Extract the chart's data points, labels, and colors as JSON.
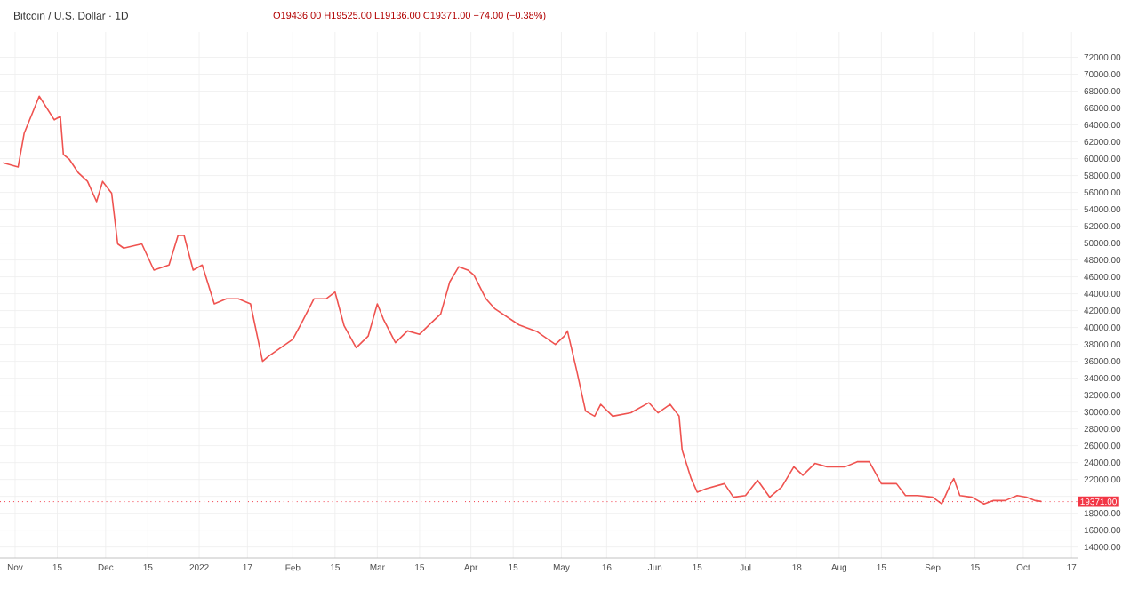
{
  "chart_data": {
    "type": "line",
    "title": "Bitcoin / U.S. Dollar · 1D",
    "subtitle": "O19436.00 H19525.00 L19136.00 C19371.00 −74.00 (−0.38%)",
    "x": [
      "2021-10-28",
      "2021-11-02",
      "2021-11-04",
      "2021-11-09",
      "2021-11-14",
      "2021-11-16",
      "2021-11-17",
      "2021-11-19",
      "2021-11-22",
      "2021-11-25",
      "2021-11-28",
      "2021-11-30",
      "2021-12-03",
      "2021-12-05",
      "2021-12-07",
      "2021-12-13",
      "2021-12-17",
      "2021-12-22",
      "2021-12-25",
      "2021-12-27",
      "2021-12-30",
      "2022-01-02",
      "2022-01-06",
      "2022-01-10",
      "2022-01-14",
      "2022-01-18",
      "2022-01-22",
      "2022-01-24",
      "2022-02-01",
      "2022-02-04",
      "2022-02-08",
      "2022-02-12",
      "2022-02-15",
      "2022-02-18",
      "2022-02-22",
      "2022-02-26",
      "2022-03-01",
      "2022-03-03",
      "2022-03-07",
      "2022-03-11",
      "2022-03-15",
      "2022-03-19",
      "2022-03-22",
      "2022-03-25",
      "2022-03-28",
      "2022-03-31",
      "2022-04-02",
      "2022-04-06",
      "2022-04-09",
      "2022-04-17",
      "2022-04-23",
      "2022-04-29",
      "2022-05-02",
      "2022-05-03",
      "2022-05-06",
      "2022-05-09",
      "2022-05-12",
      "2022-05-14",
      "2022-05-18",
      "2022-05-24",
      "2022-05-30",
      "2022-06-02",
      "2022-06-06",
      "2022-06-09",
      "2022-06-10",
      "2022-06-13",
      "2022-06-15",
      "2022-06-18",
      "2022-06-24",
      "2022-06-27",
      "2022-07-01",
      "2022-07-05",
      "2022-07-09",
      "2022-07-13",
      "2022-07-17",
      "2022-07-20",
      "2022-07-24",
      "2022-07-28",
      "2022-08-03",
      "2022-08-07",
      "2022-08-11",
      "2022-08-15",
      "2022-08-20",
      "2022-08-23",
      "2022-08-27",
      "2022-09-01",
      "2022-09-04",
      "2022-09-07",
      "2022-09-08",
      "2022-09-10",
      "2022-09-14",
      "2022-09-18",
      "2022-09-21",
      "2022-09-25",
      "2022-09-29",
      "2022-10-02",
      "2022-10-05",
      "2022-10-07"
    ],
    "series": [
      {
        "color": "#ef5350",
        "values": [
          59500,
          59000,
          63000,
          67400,
          64600,
          65000,
          60500,
          59900,
          58300,
          57300,
          54900,
          57300,
          55900,
          49900,
          49400,
          49900,
          46800,
          47400,
          50900,
          50900,
          46800,
          47400,
          42800,
          43400,
          43400,
          42800,
          36000,
          36600,
          38600,
          40600,
          43400,
          43400,
          44200,
          40200,
          37600,
          39000,
          42800,
          41000,
          38200,
          39600,
          39200,
          40600,
          41600,
          45400,
          47200,
          46800,
          46200,
          43400,
          42200,
          40300,
          39500,
          38000,
          39000,
          39600,
          35000,
          30100,
          29500,
          30900,
          29500,
          29900,
          31100,
          29900,
          30900,
          29500,
          25500,
          22100,
          20500,
          20900,
          21500,
          19900,
          20100,
          21900,
          19900,
          21100,
          23500,
          22500,
          23900,
          23500,
          23500,
          24100,
          24100,
          21500,
          21500,
          20100,
          20100,
          19900,
          19100,
          21500,
          22100,
          20100,
          19900,
          19100,
          19500,
          19500,
          20100,
          19900,
          19500,
          19400
        ]
      }
    ],
    "xlim": [
      "2021-10-27",
      "2022-10-19"
    ],
    "xticks": [
      {
        "value": "2021-11-01",
        "label": "Nov"
      },
      {
        "value": "2021-11-15",
        "label": "15"
      },
      {
        "value": "2021-12-01",
        "label": "Dec"
      },
      {
        "value": "2021-12-15",
        "label": "15"
      },
      {
        "value": "2022-01-01",
        "label": "2022"
      },
      {
        "value": "2022-01-17",
        "label": "17"
      },
      {
        "value": "2022-02-01",
        "label": "Feb"
      },
      {
        "value": "2022-02-15",
        "label": "15"
      },
      {
        "value": "2022-03-01",
        "label": "Mar"
      },
      {
        "value": "2022-03-15",
        "label": "15"
      },
      {
        "value": "2022-04-01",
        "label": "Apr"
      },
      {
        "value": "2022-04-15",
        "label": "15"
      },
      {
        "value": "2022-05-01",
        "label": "May"
      },
      {
        "value": "2022-05-16",
        "label": "16"
      },
      {
        "value": "2022-06-01",
        "label": "Jun"
      },
      {
        "value": "2022-06-15",
        "label": "15"
      },
      {
        "value": "2022-07-01",
        "label": "Jul"
      },
      {
        "value": "2022-07-18",
        "label": "18"
      },
      {
        "value": "2022-08-01",
        "label": "Aug"
      },
      {
        "value": "2022-08-15",
        "label": "15"
      },
      {
        "value": "2022-09-01",
        "label": "Sep"
      },
      {
        "value": "2022-09-15",
        "label": "15"
      },
      {
        "value": "2022-10-01",
        "label": "Oct"
      },
      {
        "value": "2022-10-17",
        "label": "17"
      }
    ],
    "ylim": [
      12700,
      75000
    ],
    "yticks": [
      {
        "value": 14000,
        "label": "14000.00"
      },
      {
        "value": 16000,
        "label": "16000.00"
      },
      {
        "value": 18000,
        "label": "18000.00"
      },
      {
        "value": 20000,
        "label": null
      },
      {
        "value": 22000,
        "label": "22000.00"
      },
      {
        "value": 24000,
        "label": "24000.00"
      },
      {
        "value": 26000,
        "label": "26000.00"
      },
      {
        "value": 28000,
        "label": "28000.00"
      },
      {
        "value": 30000,
        "label": "30000.00"
      },
      {
        "value": 32000,
        "label": "32000.00"
      },
      {
        "value": 34000,
        "label": "34000.00"
      },
      {
        "value": 36000,
        "label": "36000.00"
      },
      {
        "value": 38000,
        "label": "38000.00"
      },
      {
        "value": 40000,
        "label": "40000.00"
      },
      {
        "value": 42000,
        "label": "42000.00"
      },
      {
        "value": 44000,
        "label": "44000.00"
      },
      {
        "value": 46000,
        "label": "46000.00"
      },
      {
        "value": 48000,
        "label": "48000.00"
      },
      {
        "value": 50000,
        "label": "50000.00"
      },
      {
        "value": 52000,
        "label": "52000.00"
      },
      {
        "value": 54000,
        "label": "54000.00"
      },
      {
        "value": 56000,
        "label": "56000.00"
      },
      {
        "value": 58000,
        "label": "58000.00"
      },
      {
        "value": 60000,
        "label": "60000.00"
      },
      {
        "value": 62000,
        "label": "62000.00"
      },
      {
        "value": 64000,
        "label": "64000.00"
      },
      {
        "value": 66000,
        "label": "66000.00"
      },
      {
        "value": 68000,
        "label": "68000.00"
      },
      {
        "value": 70000,
        "label": "70000.00"
      },
      {
        "value": 72000,
        "label": "72000.00"
      }
    ],
    "grid": true,
    "ref_lines": [
      {
        "axis": "y",
        "value": 19371,
        "label": "19371.00",
        "color": "#f23645",
        "line_style": "dotted"
      }
    ]
  }
}
